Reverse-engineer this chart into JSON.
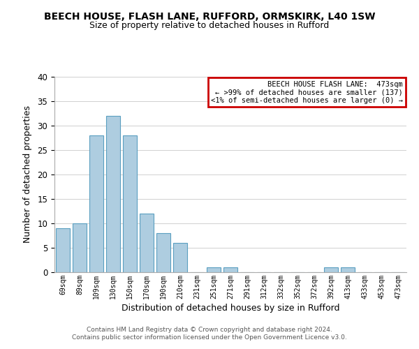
{
  "title": "BEECH HOUSE, FLASH LANE, RUFFORD, ORMSKIRK, L40 1SW",
  "subtitle": "Size of property relative to detached houses in Rufford",
  "xlabel": "Distribution of detached houses by size in Rufford",
  "ylabel": "Number of detached properties",
  "bar_color": "#aecde0",
  "bar_edge_color": "#5a9fc0",
  "categories": [
    "69sqm",
    "89sqm",
    "109sqm",
    "130sqm",
    "150sqm",
    "170sqm",
    "190sqm",
    "210sqm",
    "231sqm",
    "251sqm",
    "271sqm",
    "291sqm",
    "312sqm",
    "332sqm",
    "352sqm",
    "372sqm",
    "392sqm",
    "413sqm",
    "433sqm",
    "453sqm",
    "473sqm"
  ],
  "values": [
    9,
    10,
    28,
    32,
    28,
    12,
    8,
    6,
    0,
    1,
    1,
    0,
    0,
    0,
    0,
    0,
    1,
    1,
    0,
    0,
    0
  ],
  "ylim": [
    0,
    40
  ],
  "yticks": [
    0,
    5,
    10,
    15,
    20,
    25,
    30,
    35,
    40
  ],
  "legend_title": "BEECH HOUSE FLASH LANE:  473sqm",
  "legend_line1": "← >99% of detached houses are smaller (137)",
  "legend_line2": "<1% of semi-detached houses are larger (0) →",
  "legend_box_color": "#cc0000",
  "footnote1": "Contains HM Land Registry data © Crown copyright and database right 2024.",
  "footnote2": "Contains public sector information licensed under the Open Government Licence v3.0."
}
